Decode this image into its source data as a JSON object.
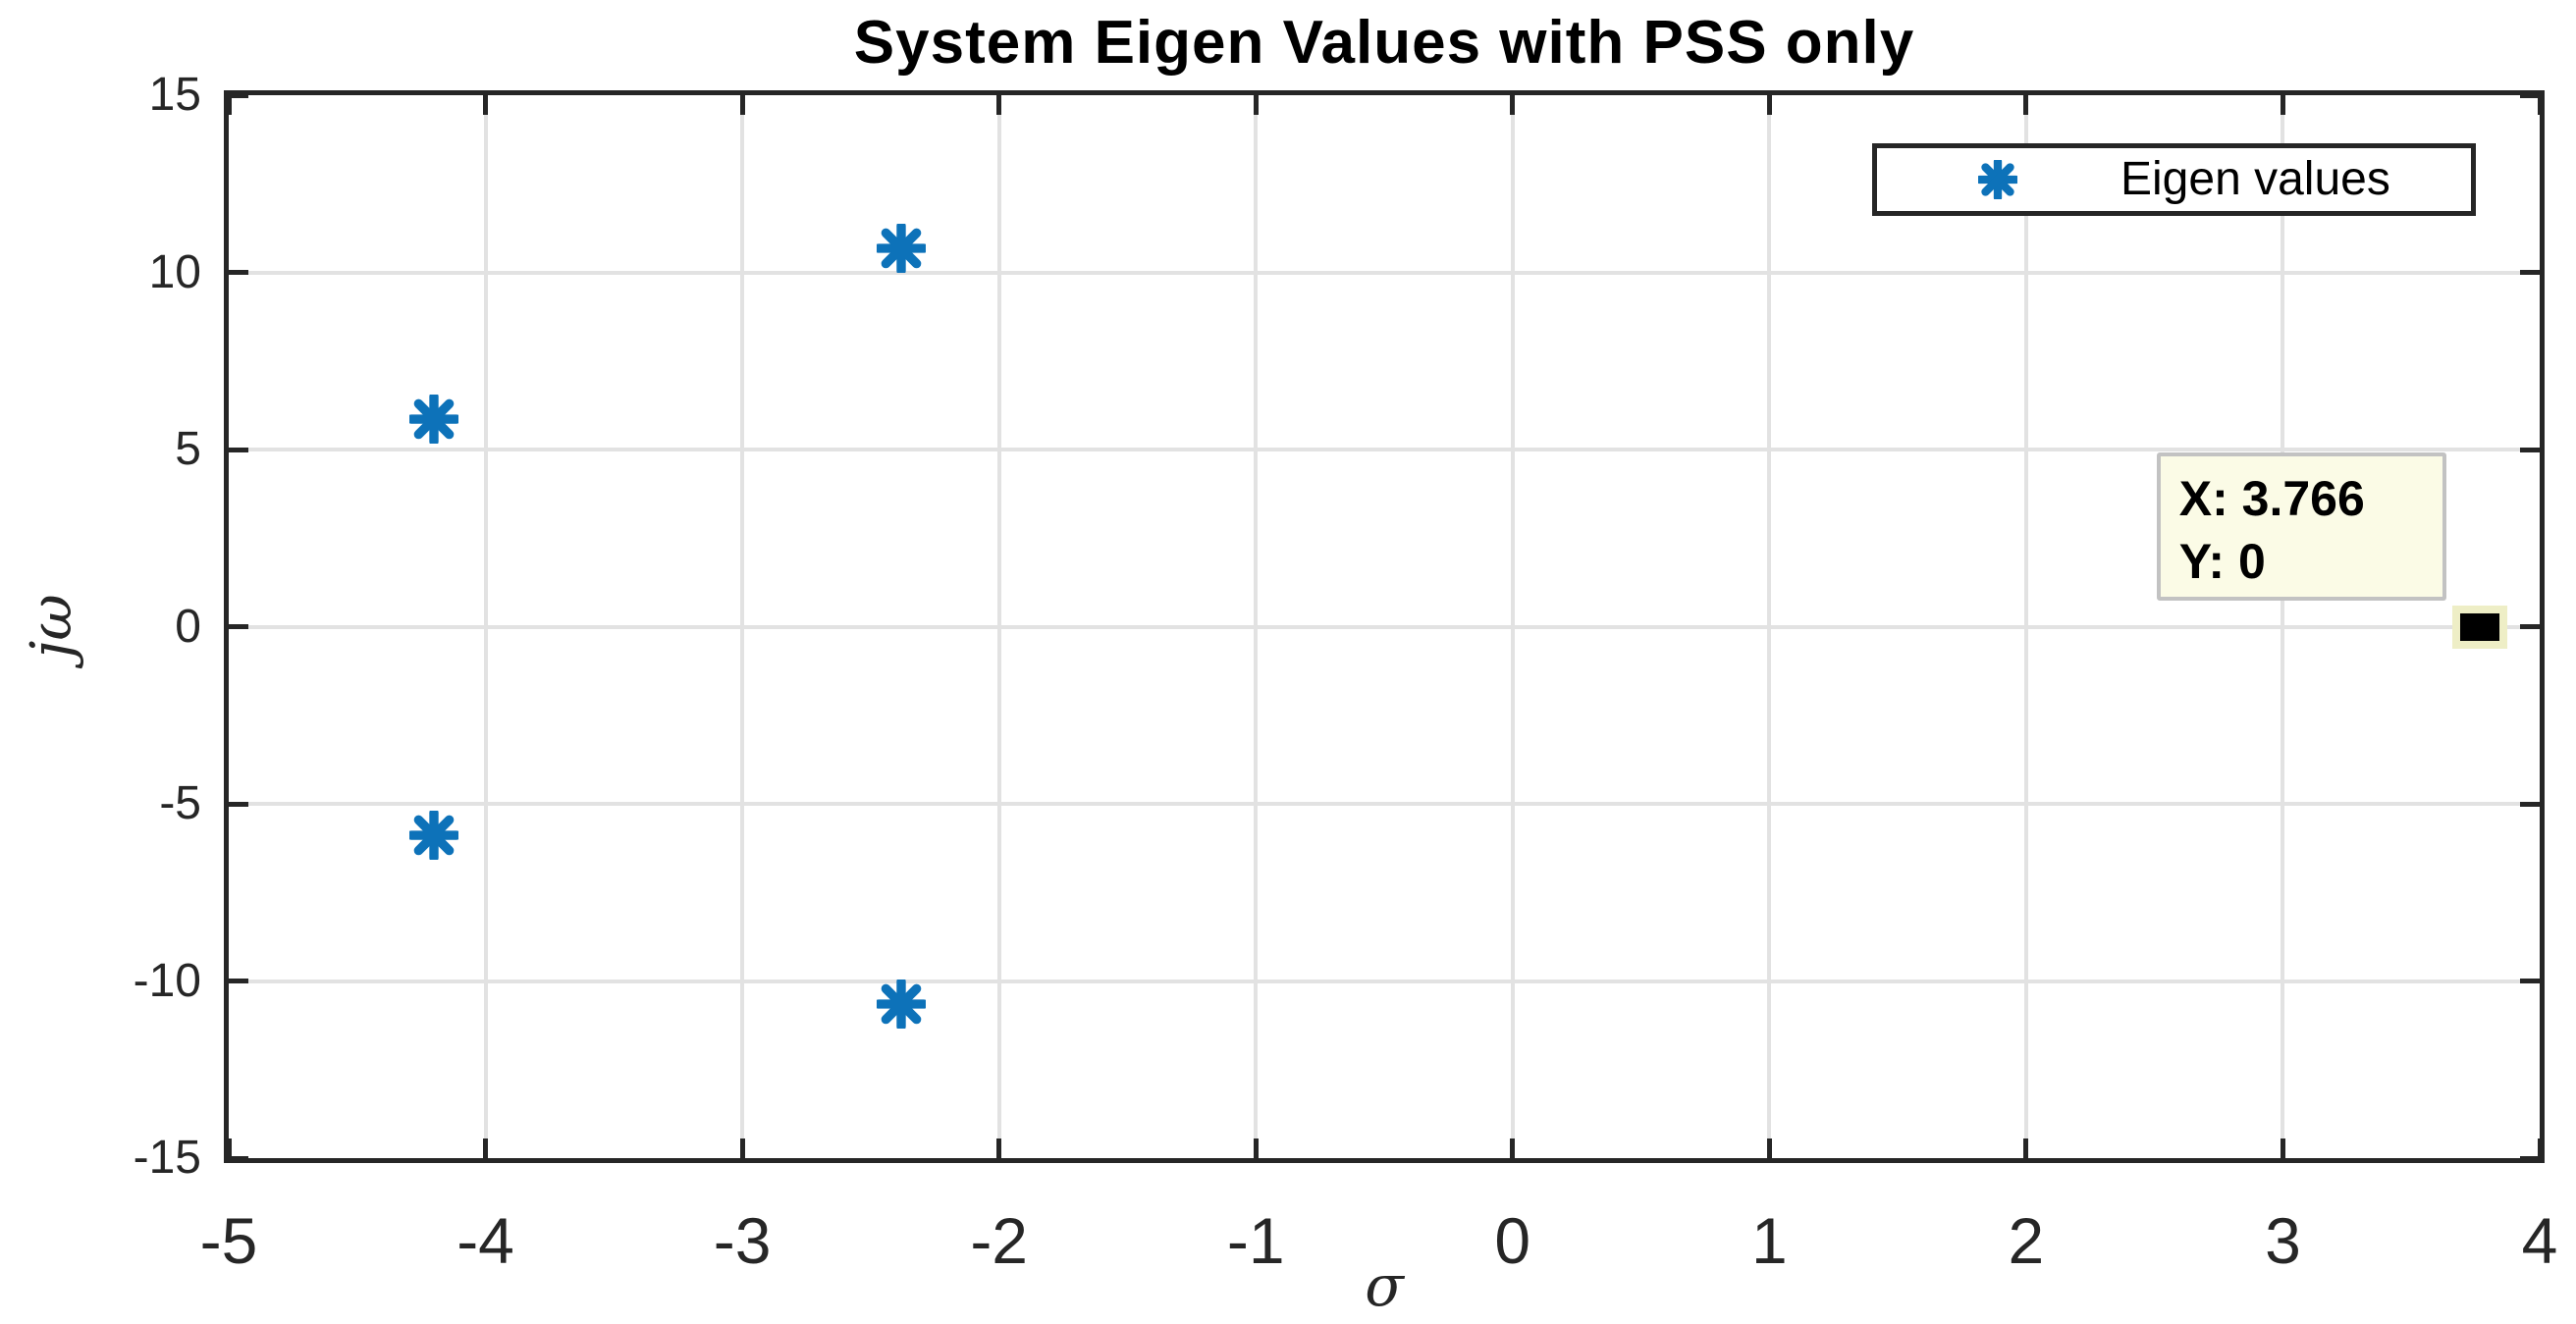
{
  "figure": {
    "title": "System Eigen Values with PSS only"
  },
  "chart_data": {
    "type": "scatter",
    "title": "System Eigen Values with PSS only",
    "xlabel": "σ",
    "ylabel": "jω",
    "xlim": [
      -5,
      4
    ],
    "ylim": [
      -15,
      15
    ],
    "xticks": [
      -5,
      -4,
      -3,
      -2,
      -1,
      0,
      1,
      2,
      3,
      4
    ],
    "yticks": [
      -15,
      -10,
      -5,
      0,
      5,
      10,
      15
    ],
    "grid": true,
    "legend": {
      "position": "top-right",
      "entries": [
        {
          "label": "Eigen values",
          "marker": "asterisk",
          "color": "#0d72b9"
        }
      ]
    },
    "series": [
      {
        "name": "Eigen values",
        "marker": "asterisk",
        "color": "#0d72b9",
        "points": [
          [
            -4.2,
            5.85
          ],
          [
            -2.38,
            10.68
          ],
          [
            -4.2,
            -5.88
          ],
          [
            -2.38,
            -10.66
          ]
        ]
      }
    ],
    "datatip": {
      "x": 3.766,
      "y": 0,
      "line1": "X: 3.766",
      "line2": "Y: 0",
      "marker_color": "#000000",
      "background": "#fbfbe6"
    }
  },
  "colors": {
    "axis": "#262626",
    "grid": "#e2e2e2",
    "marker_blue": "#0d72b9",
    "datatip_bg": "#fbfbe6",
    "datatip_border": "#c2c2c2",
    "title": "#000000"
  }
}
